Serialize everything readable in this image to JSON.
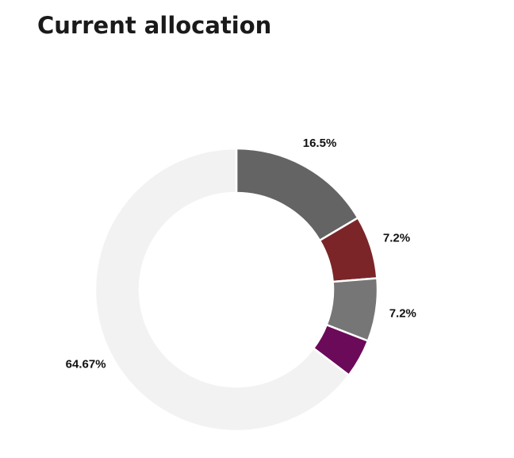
{
  "chart_data": {
    "type": "donut",
    "title": "Current allocation",
    "categories": [
      null,
      null,
      null,
      null,
      null
    ],
    "values": [
      16.5,
      7.2,
      7.2,
      4.43,
      64.67
    ],
    "value_labels": [
      "16.5%",
      "7.2%",
      "7.2%",
      null,
      "64.67%"
    ],
    "colors": [
      "#646464",
      "#7b2528",
      "#767676",
      "#6c0a5a",
      "#f2f2f2"
    ]
  }
}
